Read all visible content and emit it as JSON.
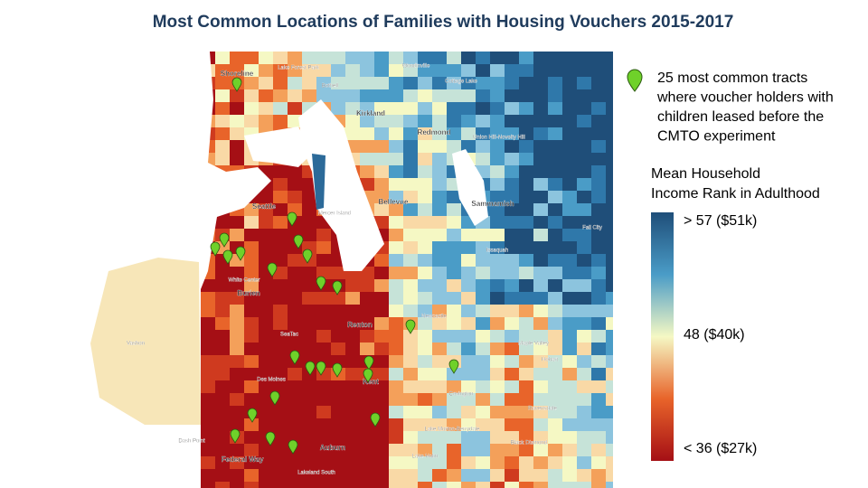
{
  "title": "Most Common Locations of Families with Housing Vouchers 2015-2017",
  "legend": {
    "pin_text": [
      "25 most common tracts",
      "where voucher holders with",
      "children leased before the",
      "CMTO experiment"
    ],
    "scale_title": [
      "Mean Household",
      "Income Rank in Adulthood"
    ],
    "scale_labels": [
      "> 57 ($51k)",
      "48 ($40k)",
      "< 36 ($27k)"
    ]
  },
  "map_labels": [
    "Shoreline",
    "Lake Forest Park",
    "Woodinville",
    "Bothell",
    "Kirkland",
    "Redmond",
    "Seattle",
    "Bellevue",
    "Sammamish",
    "Issaquah",
    "Renton",
    "Burien",
    "White Center",
    "SeaTac",
    "Vashon",
    "Kent",
    "Des Moines",
    "Auburn",
    "Federal Way",
    "Lake Morton-Berrydale",
    "Covington",
    "Maple Valley",
    "Black Diamond",
    "Lake Holm",
    "Lakeland South",
    "Dash Point",
    "Newcastle",
    "Mercer Island",
    "Fall City",
    "Ravensdale",
    "Hobart",
    "Union Hill-Novelty Hill",
    "Cottage Lake"
  ]
}
